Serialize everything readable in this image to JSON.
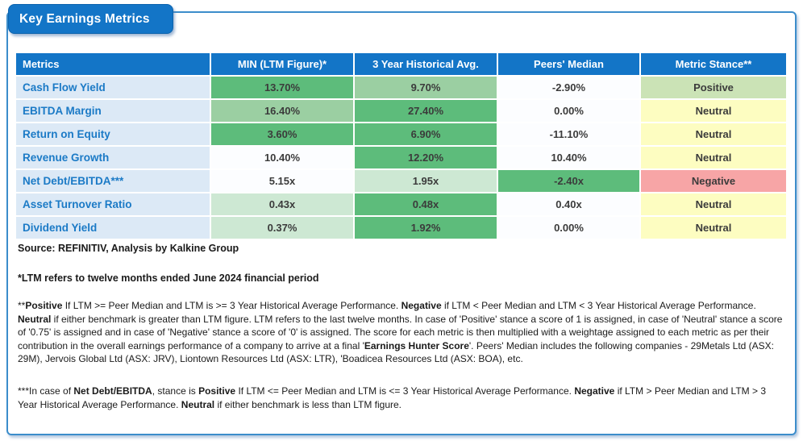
{
  "title": "Key Earnings Metrics",
  "colors": {
    "header_bg": "#1375C7",
    "border_blue": "#3C8DCB",
    "metric_bg": "#DCE9F6",
    "metric_text": "#1B7AC6"
  },
  "tones": {
    "green": "#5DBC7B",
    "green_light": "#9BCFA2",
    "green_pale": "#CDE8D3",
    "white": "#FCFDFF",
    "stance_positive": "#CBE3B6",
    "stance_neutral": "#FDFDC1",
    "stance_negative": "#F7A5A6"
  },
  "table": {
    "headers": [
      "Metrics",
      "MIN (LTM Figure)*",
      "3 Year Historical Avg.",
      "Peers' Median",
      "Metric Stance**"
    ],
    "rows": [
      {
        "metric": "Cash Flow Yield",
        "min": {
          "value": "13.70%",
          "tone": "green"
        },
        "hist": {
          "value": "9.70%",
          "tone": "green_light"
        },
        "peers": {
          "value": "-2.90%",
          "tone": "white"
        },
        "stance": {
          "value": "Positive",
          "tone": "stance_positive"
        }
      },
      {
        "metric": "EBITDA Margin",
        "min": {
          "value": "16.40%",
          "tone": "green_light"
        },
        "hist": {
          "value": "27.40%",
          "tone": "green"
        },
        "peers": {
          "value": "0.00%",
          "tone": "white"
        },
        "stance": {
          "value": "Neutral",
          "tone": "stance_neutral"
        }
      },
      {
        "metric": "Return on Equity",
        "min": {
          "value": "3.60%",
          "tone": "green"
        },
        "hist": {
          "value": "6.90%",
          "tone": "green"
        },
        "peers": {
          "value": "-11.10%",
          "tone": "white"
        },
        "stance": {
          "value": "Neutral",
          "tone": "stance_neutral"
        }
      },
      {
        "metric": "Revenue Growth",
        "min": {
          "value": "10.40%",
          "tone": "white"
        },
        "hist": {
          "value": "12.20%",
          "tone": "green"
        },
        "peers": {
          "value": "10.40%",
          "tone": "white"
        },
        "stance": {
          "value": "Neutral",
          "tone": "stance_neutral"
        }
      },
      {
        "metric": "Net Debt/EBITDA***",
        "min": {
          "value": "5.15x",
          "tone": "white"
        },
        "hist": {
          "value": "1.95x",
          "tone": "green_pale"
        },
        "peers": {
          "value": "-2.40x",
          "tone": "green"
        },
        "stance": {
          "value": "Negative",
          "tone": "stance_negative"
        }
      },
      {
        "metric": "Asset Turnover Ratio",
        "min": {
          "value": "0.43x",
          "tone": "green_pale"
        },
        "hist": {
          "value": "0.48x",
          "tone": "green"
        },
        "peers": {
          "value": "0.40x",
          "tone": "white"
        },
        "stance": {
          "value": "Neutral",
          "tone": "stance_neutral"
        }
      },
      {
        "metric": "Dividend Yield",
        "min": {
          "value": "0.37%",
          "tone": "green_pale"
        },
        "hist": {
          "value": "1.92%",
          "tone": "green"
        },
        "peers": {
          "value": "0.00%",
          "tone": "white"
        },
        "stance": {
          "value": "Neutral",
          "tone": "stance_neutral"
        }
      }
    ]
  },
  "footnotes": {
    "source": [
      {
        "t": "Source: REFINITIV, Analysis by Kalkine Group",
        "b": true
      }
    ],
    "ltm": [
      {
        "t": "*LTM refers to twelve months ended June 2024 financial period",
        "b": true
      }
    ],
    "stance": [
      {
        "t": "**",
        "b": false
      },
      {
        "t": "Positive",
        "b": true
      },
      {
        "t": " If LTM >= Peer Median and LTM is >= 3 Year Historical Average Performance. ",
        "b": false
      },
      {
        "t": "Negative",
        "b": true
      },
      {
        "t": " if LTM < Peer Median and LTM < 3 Year Historical Average Performance. ",
        "b": false
      },
      {
        "t": "Neutral",
        "b": true
      },
      {
        "t": " if either benchmark is greater than LTM figure. LTM refers to the last twelve months. In case of 'Positive' stance a score of 1 is assigned, in case of 'Neutral' stance a score of '0.75' is assigned and in case of 'Negative' stance a score of '0' is assigned. The score for each metric is then multiplied with a weightage assigned to each metric as per their contribution in the overall earnings performance of a company to arrive at a final '",
        "b": false
      },
      {
        "t": "Earnings Hunter Score",
        "b": true
      },
      {
        "t": "'. Peers' Median includes the following companies - 29Metals Ltd  (ASX: 29M), Jervois Global Ltd (ASX: JRV), Liontown Resources Ltd (ASX: LTR), 'Boadicea Resources Ltd (ASX: BOA), etc.",
        "b": false
      }
    ],
    "netdebt": [
      {
        "t": "***In case of ",
        "b": false
      },
      {
        "t": "Net Debt/EBITDA",
        "b": true
      },
      {
        "t": ", stance is ",
        "b": false
      },
      {
        "t": "Positive",
        "b": true
      },
      {
        "t": " If LTM <= Peer Median and LTM is <= 3 Year Historical Average Performance. ",
        "b": false
      },
      {
        "t": "Negative",
        "b": true
      },
      {
        "t": " if LTM > Peer Median and LTM > 3 Year Historical Average Performance. ",
        "b": false
      },
      {
        "t": "Neutral",
        "b": true
      },
      {
        "t": " if either benchmark is less than LTM figure.",
        "b": false
      }
    ]
  }
}
